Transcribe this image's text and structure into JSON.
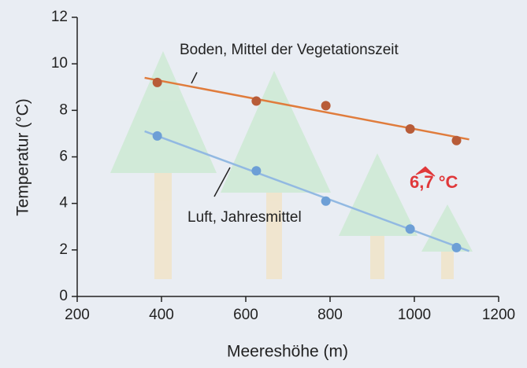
{
  "chart_data": {
    "type": "scatter",
    "x_label": "Meereshöhe (m)",
    "y_label": "Temperatur (°C)",
    "xlim": [
      200,
      1200
    ],
    "xticks": [
      200,
      400,
      600,
      800,
      1000,
      1200
    ],
    "ylim": [
      0,
      12
    ],
    "yticks": [
      0,
      2,
      4,
      6,
      8,
      10,
      12
    ],
    "series": [
      {
        "name": "Boden, Mittel der Vegetationszeit",
        "color": "#b85c38",
        "line_color": "#e07c3c",
        "x": [
          390,
          625,
          790,
          990,
          1100
        ],
        "values": [
          9.2,
          8.4,
          8.2,
          7.2,
          6.7
        ],
        "fit": {
          "x": [
            360,
            1130
          ],
          "values": [
            9.4,
            6.75
          ]
        }
      },
      {
        "name": "Luft, Jahresmittel",
        "color": "#6d9fd6",
        "line_color": "#92b9e2",
        "x": [
          390,
          625,
          790,
          990,
          1100
        ],
        "values": [
          6.9,
          5.4,
          4.1,
          2.9,
          2.1
        ],
        "fit": {
          "x": [
            360,
            1130
          ],
          "values": [
            7.1,
            1.95
          ]
        }
      }
    ],
    "annotations": [
      {
        "text": "6,7 °C",
        "color": "#e0383a"
      }
    ]
  }
}
